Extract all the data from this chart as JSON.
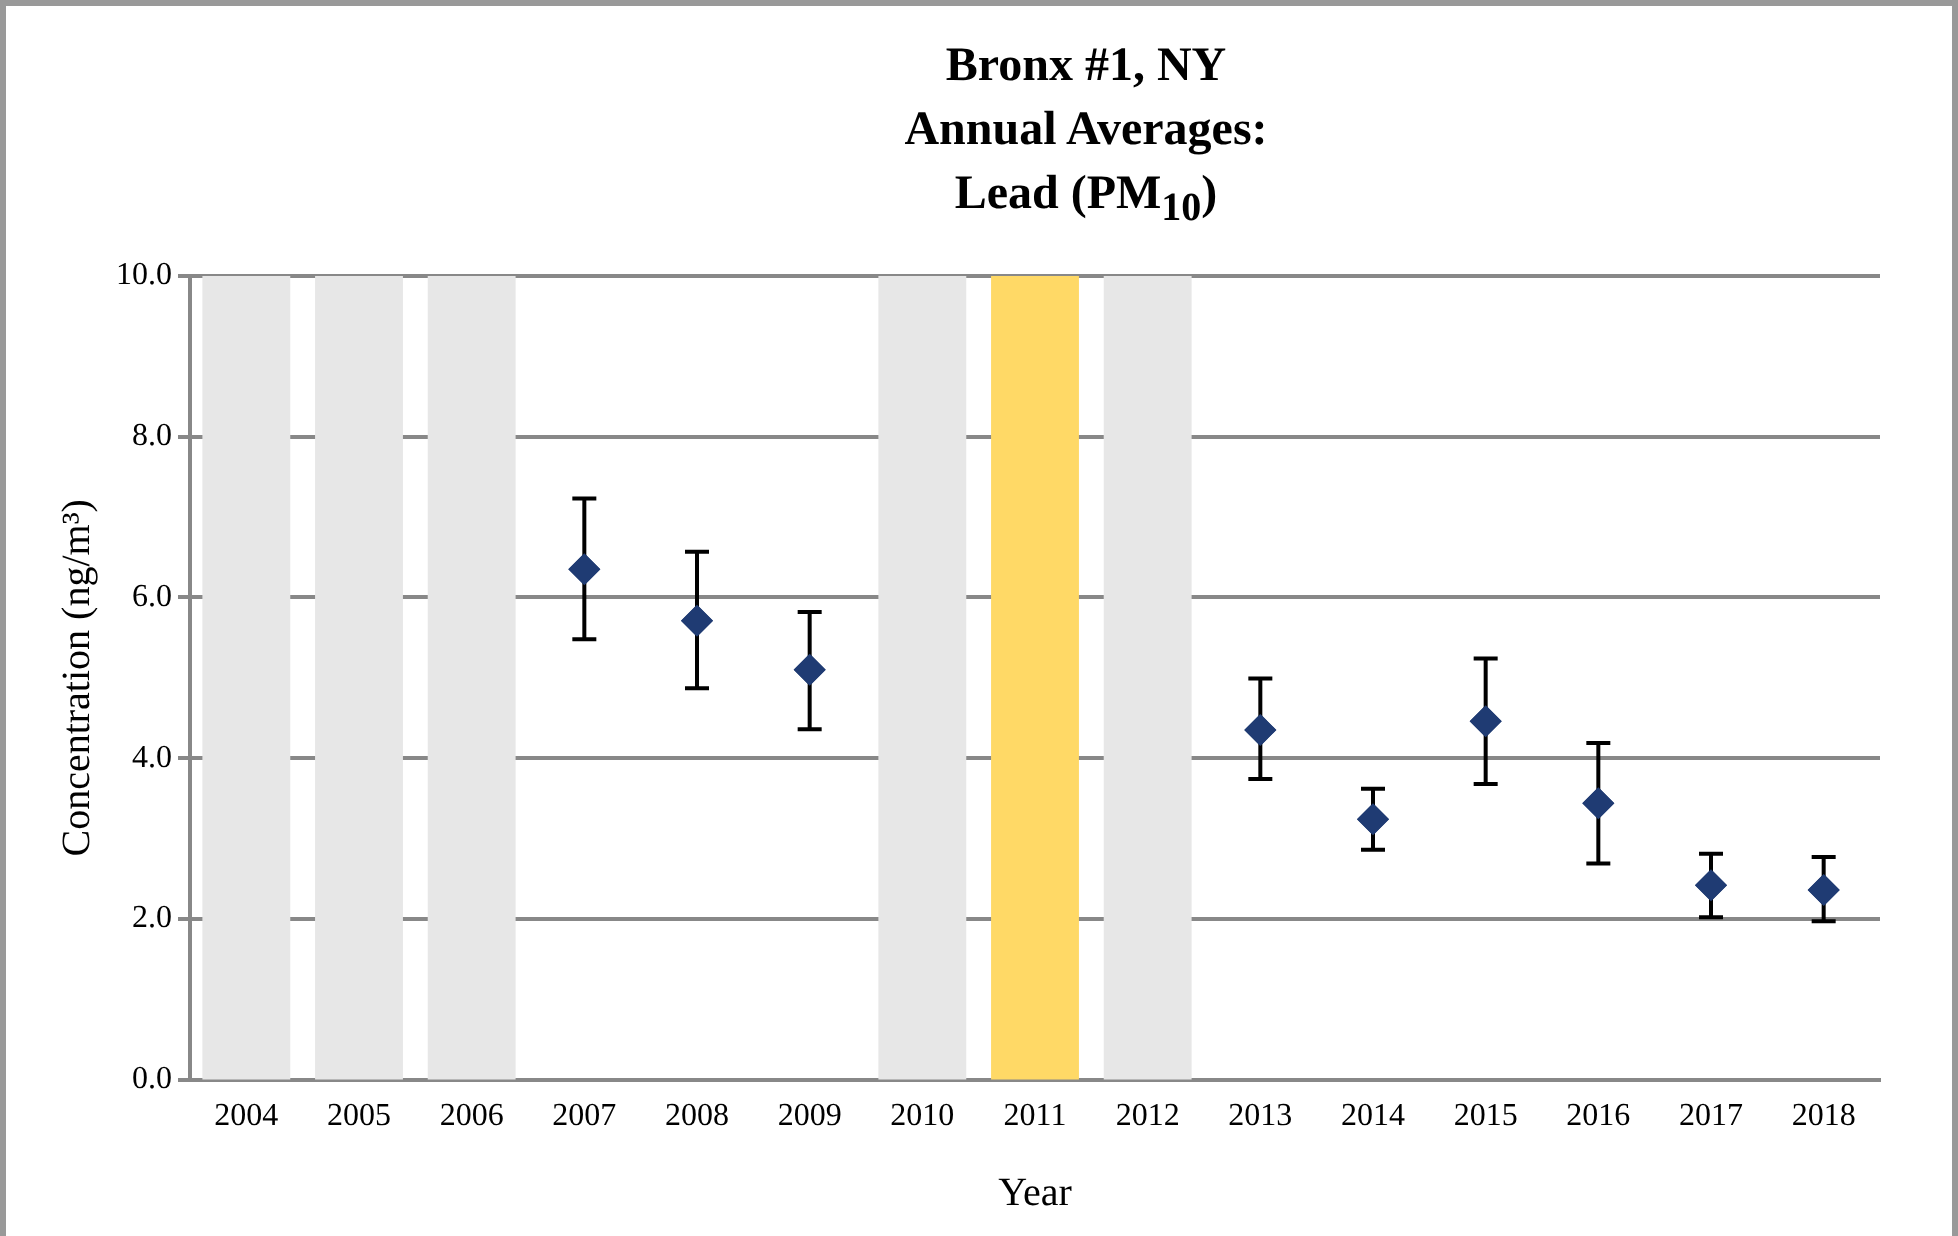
{
  "chart_data": {
    "type": "scatter",
    "title": "Bronx #1, NY\nAnnual Averages:\nLead (PM$_{10}$)",
    "xlabel": "Year",
    "ylabel": "Concentration (ng/m³)",
    "categories": [
      "2004",
      "2005",
      "2006",
      "2007",
      "2008",
      "2009",
      "2010",
      "2011",
      "2012",
      "2013",
      "2014",
      "2015",
      "2016",
      "2017",
      "2018"
    ],
    "series": [
      {
        "color": "#1f3b73",
        "values": [
          null,
          null,
          null,
          6.35,
          5.71,
          5.1,
          null,
          null,
          null,
          4.35,
          3.24,
          4.46,
          3.44,
          2.42,
          2.36
        ],
        "errors": [
          null,
          null,
          null,
          [
            5.48,
            7.23
          ],
          [
            4.87,
            6.57
          ],
          [
            4.36,
            5.82
          ],
          null,
          null,
          null,
          [
            3.74,
            4.99
          ],
          [
            2.86,
            3.62
          ],
          [
            3.68,
            5.24
          ],
          [
            2.69,
            4.19
          ],
          [
            2.02,
            2.81
          ],
          [
            1.97,
            2.77
          ]
        ]
      }
    ],
    "ylim": [
      0,
      10
    ],
    "yticks": [
      {
        "value": 0,
        "label": "0.0"
      },
      {
        "value": 2,
        "label": "2.0"
      },
      {
        "value": 4,
        "label": "4.0"
      },
      {
        "value": 6,
        "label": "6.0"
      },
      {
        "value": 8,
        "label": "8.0"
      },
      {
        "value": 10,
        "label": "10.0"
      }
    ],
    "bands": [
      {
        "axis": "x",
        "from": "2004",
        "to": "2004",
        "color": "#e7e7e7"
      },
      {
        "axis": "x",
        "from": "2005",
        "to": "2005",
        "color": "#e7e7e7"
      },
      {
        "axis": "x",
        "from": "2006",
        "to": "2006",
        "color": "#e7e7e7"
      },
      {
        "axis": "x",
        "from": "2010",
        "to": "2010",
        "color": "#e7e7e7"
      },
      {
        "axis": "x",
        "from": "2011",
        "to": "2011",
        "color": "#ffd966"
      },
      {
        "axis": "x",
        "from": "2012",
        "to": "2012",
        "color": "#e7e7e7"
      }
    ],
    "grid": "y",
    "legend": false,
    "marker": "diamond"
  }
}
